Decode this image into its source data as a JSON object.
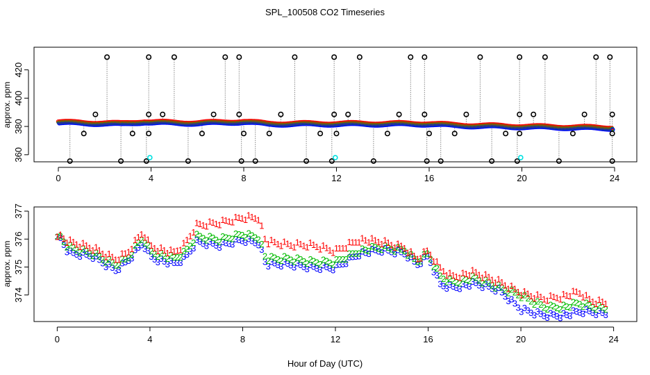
{
  "title": "SPL_100508  CO2 Timeseries",
  "xlabel": "Hour of Day (UTC)",
  "colors": {
    "series1": "#ff0000",
    "series2": "#00bb00",
    "series3": "#0000ff",
    "black": "#000000",
    "cyan": "#00e0e0",
    "gray": "#888888"
  },
  "chart_data": [
    {
      "type": "scatter",
      "title": "",
      "xlabel": "",
      "ylabel": "approx. ppm",
      "xlim": [
        0,
        24
      ],
      "ylim": [
        355,
        436
      ],
      "xticks": [
        0,
        4,
        8,
        12,
        16,
        20,
        24
      ],
      "yticks": [
        360,
        380,
        400,
        420
      ],
      "grid": false,
      "baseline": [
        [
          0,
          382.5
        ],
        [
          2,
          381.8
        ],
        [
          2.7,
          381.5
        ],
        [
          3.7,
          383
        ],
        [
          4,
          382.5
        ],
        [
          6,
          382
        ],
        [
          8,
          383
        ],
        [
          9,
          381.5
        ],
        [
          12,
          381.5
        ],
        [
          16,
          381.5
        ],
        [
          17,
          380.5
        ],
        [
          20,
          379.5
        ],
        [
          24,
          378.5
        ]
      ],
      "black_spikes_high": [
        2.1,
        3.9,
        5.0,
        7.2,
        7.8,
        10.2,
        11.9,
        13.0,
        15.2,
        15.8,
        18.2,
        19.9,
        21.0,
        23.2,
        23.8
      ],
      "black_spikes_low": [
        0.5,
        2.7,
        3.8,
        5.6,
        7.9,
        8.5,
        10.7,
        11.8,
        13.6,
        15.9,
        16.5,
        18.7,
        19.8,
        21.6,
        23.9
      ],
      "black_mid_high": [
        1.6,
        3.9,
        4.5,
        6.7,
        7.8,
        9.6,
        11.9,
        12.5,
        14.7,
        15.8,
        17.6,
        19.9,
        20.5,
        22.7,
        23.9
      ],
      "black_mid_low": [
        1.1,
        3.2,
        3.9,
        6.2,
        8.0,
        9.1,
        11.3,
        12.0,
        14.2,
        16.0,
        17.1,
        19.3,
        19.9,
        22.2,
        23.9
      ],
      "cyan_points": [
        [
          3.95,
          358
        ],
        [
          11.95,
          358
        ],
        [
          19.95,
          358
        ]
      ]
    },
    {
      "type": "scatter",
      "title": "",
      "xlabel": "Hour of Day (UTC)",
      "ylabel": "approx. ppm",
      "xlim": [
        -1,
        25
      ],
      "ylim": [
        373.05,
        377.15
      ],
      "xticks": [
        0,
        4,
        8,
        12,
        16,
        20,
        24
      ],
      "yticks": [
        374,
        375,
        376,
        377
      ],
      "grid": false,
      "series_markers": [
        "1",
        "2",
        "3"
      ],
      "series": [
        {
          "name": "1",
          "values": [
            [
              0,
              376.2
            ],
            [
              0.5,
              375.9
            ],
            [
              1.5,
              375.7
            ],
            [
              2.5,
              375.3
            ],
            [
              3.0,
              375.5
            ],
            [
              3.7,
              376.3
            ],
            [
              4.0,
              375.8
            ],
            [
              5.0,
              375.5
            ],
            [
              5.5,
              375.8
            ],
            [
              6.0,
              376.5
            ],
            [
              7.0,
              376.6
            ],
            [
              8.0,
              376.8
            ],
            [
              8.7,
              376.8
            ],
            [
              9.0,
              375.9
            ],
            [
              10.0,
              375.8
            ],
            [
              11.0,
              375.8
            ],
            [
              12.0,
              375.6
            ],
            [
              13.0,
              376.0
            ],
            [
              14.0,
              375.9
            ],
            [
              15.0,
              375.7
            ],
            [
              15.5,
              375.3
            ],
            [
              16.0,
              375.6
            ],
            [
              16.5,
              375.0
            ],
            [
              17.0,
              374.7
            ],
            [
              18.0,
              374.8
            ],
            [
              19.0,
              374.5
            ],
            [
              20.0,
              374.1
            ],
            [
              21.0,
              373.9
            ],
            [
              22.0,
              374.0
            ],
            [
              22.5,
              374.1
            ],
            [
              23.0,
              373.8
            ],
            [
              23.8,
              373.7
            ]
          ]
        },
        {
          "name": "2",
          "values": [
            [
              0,
              376.2
            ],
            [
              0.5,
              375.7
            ],
            [
              1.5,
              375.5
            ],
            [
              2.5,
              375.1
            ],
            [
              3.0,
              375.3
            ],
            [
              3.7,
              376.1
            ],
            [
              4.0,
              375.6
            ],
            [
              5.0,
              375.3
            ],
            [
              5.5,
              375.5
            ],
            [
              6.0,
              376.1
            ],
            [
              7.0,
              376.0
            ],
            [
              8.0,
              376.2
            ],
            [
              8.7,
              376.1
            ],
            [
              9.0,
              375.3
            ],
            [
              10.0,
              375.3
            ],
            [
              11.0,
              375.2
            ],
            [
              12.0,
              375.2
            ],
            [
              13.0,
              375.6
            ],
            [
              14.0,
              375.7
            ],
            [
              15.0,
              375.6
            ],
            [
              15.5,
              375.2
            ],
            [
              16.0,
              375.5
            ],
            [
              16.5,
              374.7
            ],
            [
              17.0,
              374.5
            ],
            [
              18.0,
              374.6
            ],
            [
              19.0,
              374.3
            ],
            [
              20.0,
              374.0
            ],
            [
              21.0,
              373.6
            ],
            [
              22.0,
              373.6
            ],
            [
              22.5,
              373.7
            ],
            [
              23.0,
              373.6
            ],
            [
              23.8,
              373.5
            ]
          ]
        },
        {
          "name": "3",
          "values": [
            [
              0,
              376.2
            ],
            [
              0.5,
              375.5
            ],
            [
              1.5,
              375.4
            ],
            [
              2.5,
              374.9
            ],
            [
              3.0,
              375.2
            ],
            [
              3.7,
              375.9
            ],
            [
              4.0,
              375.4
            ],
            [
              5.0,
              375.1
            ],
            [
              5.5,
              375.3
            ],
            [
              6.0,
              375.9
            ],
            [
              7.0,
              375.8
            ],
            [
              8.0,
              376.0
            ],
            [
              8.7,
              375.9
            ],
            [
              9.0,
              375.1
            ],
            [
              10.0,
              375.1
            ],
            [
              11.0,
              375.0
            ],
            [
              12.0,
              375.0
            ],
            [
              13.0,
              375.5
            ],
            [
              14.0,
              375.6
            ],
            [
              15.0,
              375.5
            ],
            [
              15.5,
              375.1
            ],
            [
              16.0,
              375.4
            ],
            [
              16.5,
              374.4
            ],
            [
              17.0,
              374.3
            ],
            [
              18.0,
              374.4
            ],
            [
              19.0,
              374.2
            ],
            [
              20.0,
              373.5
            ],
            [
              21.0,
              373.3
            ],
            [
              22.0,
              373.3
            ],
            [
              22.5,
              373.4
            ],
            [
              23.0,
              373.4
            ],
            [
              23.8,
              373.3
            ]
          ]
        }
      ]
    }
  ]
}
